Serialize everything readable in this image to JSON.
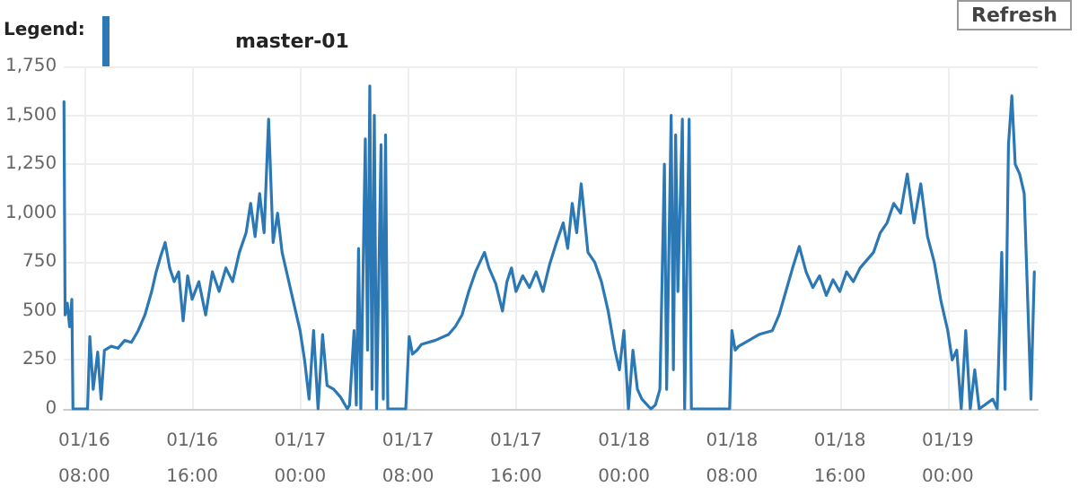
{
  "chart_data": {
    "type": "line",
    "legend_title": "Legend:",
    "legend": "top left",
    "grid": true,
    "marker": "none",
    "line_style": "solid",
    "annotations": [
      "Refresh"
    ],
    "xlim": [
      "--01-16T06:30",
      "--01-19T06:40"
    ],
    "xticks": [
      {
        "value": "--01-16T08:00",
        "label": "01/16\n08:00"
      },
      {
        "value": "--01-16T16:00",
        "label": "01/16\n16:00"
      },
      {
        "value": "--01-17T00:00",
        "label": "01/17\n00:00"
      },
      {
        "value": "--01-17T08:00",
        "label": "01/17\n08:00"
      },
      {
        "value": "--01-17T16:00",
        "label": "01/17\n16:00"
      },
      {
        "value": "--01-18T00:00",
        "label": "01/18\n00:00"
      },
      {
        "value": "--01-18T08:00",
        "label": "01/18\n08:00"
      },
      {
        "value": "--01-18T16:00",
        "label": "01/18\n16:00"
      },
      {
        "value": "--01-19T00:00",
        "label": "01/19\n00:00"
      }
    ],
    "ylim": [
      0,
      1750
    ],
    "yticks": [
      {
        "value": 0,
        "label": "0"
      },
      {
        "value": 250,
        "label": "250"
      },
      {
        "value": 500,
        "label": "500"
      },
      {
        "value": 750,
        "label": "750"
      },
      {
        "value": 1000,
        "label": "1,000"
      },
      {
        "value": 1250,
        "label": "1,250"
      },
      {
        "value": 1500,
        "label": "1,500"
      },
      {
        "value": 1750,
        "label": "1,750"
      }
    ],
    "x": [
      "--01-16T06:30",
      "--01-16T06:35",
      "--01-16T06:45",
      "--01-16T06:55",
      "--01-16T07:05",
      "--01-16T07:10",
      "--01-16T08:15",
      "--01-16T08:25",
      "--01-16T08:40",
      "--01-16T09:00",
      "--01-16T09:15",
      "--01-16T09:30",
      "--01-16T10:00",
      "--01-16T10:30",
      "--01-16T11:00",
      "--01-16T11:30",
      "--01-16T12:00",
      "--01-16T12:30",
      "--01-16T13:00",
      "--01-16T13:20",
      "--01-16T13:40",
      "--01-16T14:00",
      "--01-16T14:20",
      "--01-16T14:40",
      "--01-16T15:00",
      "--01-16T15:20",
      "--01-16T15:40",
      "--01-16T16:00",
      "--01-16T16:30",
      "--01-16T17:00",
      "--01-16T17:30",
      "--01-16T18:00",
      "--01-16T18:30",
      "--01-16T19:00",
      "--01-16T19:30",
      "--01-16T20:00",
      "--01-16T20:20",
      "--01-16T20:40",
      "--01-16T21:00",
      "--01-16T21:20",
      "--01-16T21:40",
      "--01-16T22:00",
      "--01-16T22:20",
      "--01-16T22:40",
      "--01-16T23:00",
      "--01-16T23:20",
      "--01-16T23:40",
      "--01-17T00:00",
      "--01-17T00:20",
      "--01-17T00:40",
      "--01-17T01:00",
      "--01-17T01:20",
      "--01-17T01:40",
      "--01-17T02:00",
      "--01-17T02:30",
      "--01-17T03:00",
      "--01-17T03:30",
      "--01-17T03:40",
      "--01-17T04:00",
      "--01-17T04:10",
      "--01-17T04:20",
      "--01-17T04:30",
      "--01-17T04:50",
      "--01-17T05:00",
      "--01-17T05:10",
      "--01-17T05:20",
      "--01-17T05:30",
      "--01-17T05:40",
      "--01-17T06:00",
      "--01-17T06:10",
      "--01-17T06:20",
      "--01-17T06:30",
      "--01-17T07:50",
      "--01-17T08:05",
      "--01-17T08:20",
      "--01-17T08:40",
      "--01-17T09:00",
      "--01-17T10:00",
      "--01-17T11:00",
      "--01-17T11:30",
      "--01-17T12:00",
      "--01-17T12:30",
      "--01-17T13:00",
      "--01-17T13:40",
      "--01-17T14:00",
      "--01-17T14:30",
      "--01-17T15:00",
      "--01-17T15:20",
      "--01-17T15:40",
      "--01-17T16:00",
      "--01-17T16:30",
      "--01-17T17:00",
      "--01-17T17:30",
      "--01-17T18:00",
      "--01-17T18:30",
      "--01-17T19:00",
      "--01-17T19:30",
      "--01-17T19:50",
      "--01-17T20:10",
      "--01-17T20:30",
      "--01-17T20:50",
      "--01-17T21:20",
      "--01-17T21:50",
      "--01-17T22:20",
      "--01-17T22:50",
      "--01-17T23:20",
      "--01-17T23:40",
      "--01-18T00:00",
      "--01-18T00:20",
      "--01-18T00:40",
      "--01-18T01:00",
      "--01-18T01:20",
      "--01-18T02:00",
      "--01-18T02:20",
      "--01-18T02:40",
      "--01-18T03:00",
      "--01-18T03:10",
      "--01-18T03:30",
      "--01-18T03:40",
      "--01-18T03:50",
      "--01-18T04:00",
      "--01-18T04:20",
      "--01-18T04:30",
      "--01-18T04:50",
      "--01-18T05:00",
      "--01-18T07:50",
      "--01-18T08:00",
      "--01-18T08:15",
      "--01-18T08:30",
      "--01-18T09:00",
      "--01-18T10:00",
      "--01-18T11:00",
      "--01-18T11:30",
      "--01-18T12:00",
      "--01-18T12:30",
      "--01-18T13:00",
      "--01-18T13:30",
      "--01-18T14:00",
      "--01-18T14:30",
      "--01-18T15:00",
      "--01-18T15:30",
      "--01-18T16:00",
      "--01-18T16:30",
      "--01-18T17:00",
      "--01-18T17:30",
      "--01-18T18:00",
      "--01-18T18:30",
      "--01-18T19:00",
      "--01-18T19:30",
      "--01-18T20:00",
      "--01-18T20:30",
      "--01-18T21:00",
      "--01-18T21:30",
      "--01-18T22:00",
      "--01-18T22:30",
      "--01-18T23:00",
      "--01-18T23:30",
      "--01-19T00:00",
      "--01-19T00:20",
      "--01-19T00:40",
      "--01-19T01:00",
      "--01-19T01:20",
      "--01-19T01:40",
      "--01-19T02:00",
      "--01-19T02:20",
      "--01-19T03:20",
      "--01-19T03:40",
      "--01-19T04:00",
      "--01-19T04:15",
      "--01-19T04:30",
      "--01-19T04:45",
      "--01-19T05:00",
      "--01-19T05:20",
      "--01-19T05:40",
      "--01-19T06:10",
      "--01-19T06:25"
    ],
    "series": [
      {
        "name": "master-01",
        "color": "#2b78b4",
        "values": [
          1570,
          480,
          540,
          420,
          560,
          0,
          0,
          370,
          100,
          290,
          50,
          300,
          320,
          310,
          350,
          340,
          400,
          480,
          600,
          700,
          780,
          850,
          720,
          650,
          700,
          450,
          680,
          560,
          650,
          480,
          700,
          600,
          720,
          650,
          800,
          900,
          1050,
          880,
          1100,
          900,
          1480,
          850,
          1000,
          800,
          700,
          600,
          500,
          400,
          250,
          50,
          400,
          0,
          380,
          120,
          100,
          60,
          0,
          20,
          400,
          20,
          820,
          0,
          1380,
          300,
          1650,
          100,
          1500,
          0,
          1350,
          50,
          1400,
          0,
          0,
          370,
          280,
          300,
          330,
          350,
          380,
          420,
          480,
          600,
          700,
          800,
          720,
          640,
          500,
          650,
          720,
          600,
          680,
          620,
          700,
          600,
          740,
          850,
          950,
          820,
          1050,
          900,
          1150,
          800,
          750,
          650,
          500,
          300,
          200,
          400,
          0,
          300,
          100,
          50,
          0,
          20,
          100,
          1250,
          100,
          1500,
          200,
          1400,
          600,
          1480,
          0,
          1480,
          0,
          0,
          400,
          300,
          320,
          340,
          380,
          400,
          480,
          600,
          720,
          830,
          700,
          620,
          680,
          580,
          660,
          600,
          700,
          650,
          720,
          760,
          800,
          900,
          950,
          1050,
          1000,
          1200,
          950,
          1150,
          880,
          750,
          550,
          400,
          250,
          300,
          0,
          400,
          0,
          200,
          0,
          50,
          0,
          800,
          100,
          1350,
          1600,
          1250,
          1200,
          1100,
          50,
          700
        ]
      }
    ]
  }
}
